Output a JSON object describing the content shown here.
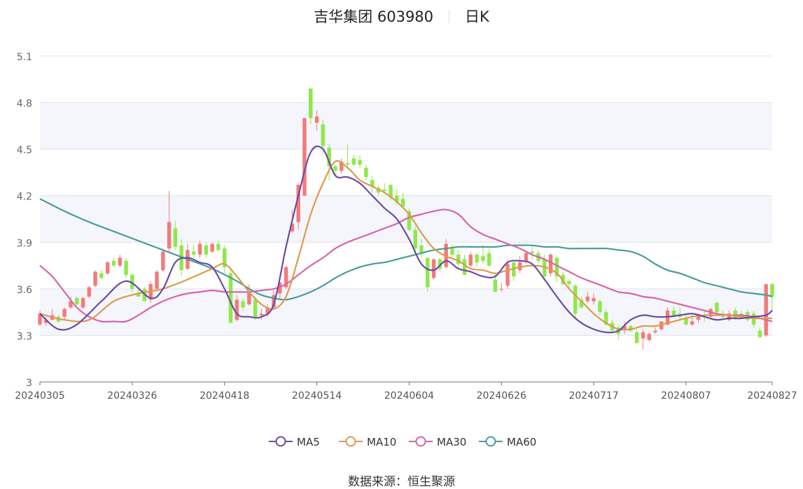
{
  "header": {
    "stock_name_code": "吉华集团 603980",
    "period": "日K"
  },
  "source": {
    "label": "数据来源：",
    "value": "恒生聚源"
  },
  "colors": {
    "up": "#f47a7a",
    "down": "#8fe84b",
    "MA5": "#6a4ca6",
    "MA10": "#de9a4e",
    "MA30": "#d765a7",
    "MA60": "#4a9b9b",
    "grid": "#dde3ea",
    "band": "#f4f6fb"
  },
  "chart_data": {
    "type": "candlestick",
    "title": "吉华集团 603980 日K",
    "ylim": [
      3.0,
      5.1
    ],
    "yticks": [
      "3",
      "3.3",
      "3.6",
      "3.9",
      "4.2",
      "4.5",
      "4.8",
      "5.1"
    ],
    "xticks": [
      {
        "label": "20240305",
        "index": 0
      },
      {
        "label": "20240326",
        "index": 15
      },
      {
        "label": "20240418",
        "index": 30
      },
      {
        "label": "20240514",
        "index": 45
      },
      {
        "label": "20240604",
        "index": 60
      },
      {
        "label": "20240626",
        "index": 75
      },
      {
        "label": "20240717",
        "index": 90
      },
      {
        "label": "20240807",
        "index": 105
      },
      {
        "label": "20240827",
        "index": 119
      }
    ],
    "candles": [
      [
        3.37,
        3.44,
        3.46,
        3.36
      ],
      [
        3.38,
        3.4,
        3.42,
        3.36
      ],
      [
        3.4,
        3.43,
        3.47,
        3.4
      ],
      [
        3.42,
        3.39,
        3.43,
        3.38
      ],
      [
        3.42,
        3.47,
        3.48,
        3.4
      ],
      [
        3.48,
        3.52,
        3.55,
        3.47
      ],
      [
        3.54,
        3.5,
        3.55,
        3.49
      ],
      [
        3.48,
        3.54,
        3.55,
        3.47
      ],
      [
        3.55,
        3.61,
        3.62,
        3.54
      ],
      [
        3.62,
        3.71,
        3.72,
        3.61
      ],
      [
        3.7,
        3.67,
        3.72,
        3.66
      ],
      [
        3.7,
        3.77,
        3.78,
        3.69
      ],
      [
        3.78,
        3.75,
        3.8,
        3.74
      ],
      [
        3.75,
        3.8,
        3.82,
        3.74
      ],
      [
        3.78,
        3.69,
        3.8,
        3.67
      ],
      [
        3.69,
        3.6,
        3.7,
        3.58
      ],
      [
        3.57,
        3.55,
        3.6,
        3.55
      ],
      [
        3.6,
        3.52,
        3.61,
        3.52
      ],
      [
        3.53,
        3.63,
        3.65,
        3.51
      ],
      [
        3.6,
        3.71,
        3.72,
        3.59
      ],
      [
        3.72,
        3.84,
        3.86,
        3.71
      ],
      [
        3.86,
        4.03,
        4.23,
        3.84
      ],
      [
        3.99,
        3.87,
        4.04,
        3.85
      ],
      [
        3.88,
        3.72,
        3.92,
        3.68
      ],
      [
        3.73,
        3.85,
        3.89,
        3.72
      ],
      [
        3.84,
        3.82,
        3.89,
        3.8
      ],
      [
        3.82,
        3.89,
        3.91,
        3.8
      ],
      [
        3.88,
        3.82,
        3.9,
        3.8
      ],
      [
        3.84,
        3.89,
        3.9,
        3.83
      ],
      [
        3.89,
        3.85,
        3.91,
        3.84
      ],
      [
        3.86,
        3.74,
        3.88,
        3.7
      ],
      [
        3.7,
        3.38,
        3.72,
        3.38
      ],
      [
        3.4,
        3.53,
        3.56,
        3.39
      ],
      [
        3.52,
        3.48,
        3.54,
        3.46
      ],
      [
        3.5,
        3.58,
        3.63,
        3.49
      ],
      [
        3.53,
        3.42,
        3.55,
        3.4
      ],
      [
        3.43,
        3.44,
        3.47,
        3.4
      ],
      [
        3.44,
        3.48,
        3.5,
        3.42
      ],
      [
        3.48,
        3.56,
        3.59,
        3.47
      ],
      [
        3.57,
        3.64,
        3.65,
        3.53
      ],
      [
        3.61,
        3.74,
        3.75,
        3.6
      ],
      [
        3.97,
        4.02,
        4.11,
        3.96
      ],
      [
        4.03,
        4.27,
        4.28,
        3.98
      ],
      [
        4.2,
        4.7,
        4.7,
        4.2
      ],
      [
        4.89,
        4.7,
        4.89,
        4.66
      ],
      [
        4.67,
        4.71,
        4.75,
        4.62
      ],
      [
        4.66,
        4.52,
        4.69,
        4.47
      ],
      [
        4.51,
        4.39,
        4.53,
        4.3
      ],
      [
        4.39,
        4.36,
        4.4,
        4.33
      ],
      [
        4.36,
        4.42,
        4.44,
        4.34
      ],
      [
        4.41,
        4.4,
        4.53,
        4.38
      ],
      [
        4.44,
        4.4,
        4.46,
        4.39
      ],
      [
        4.43,
        4.4,
        4.46,
        4.38
      ],
      [
        4.38,
        4.32,
        4.4,
        4.3
      ],
      [
        4.3,
        4.26,
        4.33,
        4.22
      ],
      [
        4.25,
        4.22,
        4.27,
        4.2
      ],
      [
        4.24,
        4.23,
        4.28,
        4.21
      ],
      [
        4.27,
        4.19,
        4.27,
        4.17
      ],
      [
        4.2,
        4.16,
        4.24,
        4.14
      ],
      [
        4.18,
        4.13,
        4.22,
        4.12
      ],
      [
        4.1,
        3.98,
        4.12,
        3.97
      ],
      [
        3.98,
        3.86,
        4.0,
        3.84
      ],
      [
        3.88,
        3.83,
        3.92,
        3.8
      ],
      [
        3.8,
        3.61,
        3.8,
        3.58
      ],
      [
        3.67,
        3.79,
        3.8,
        3.66
      ],
      [
        3.79,
        3.73,
        3.8,
        3.71
      ],
      [
        3.74,
        3.89,
        3.92,
        3.73
      ],
      [
        3.86,
        3.82,
        3.89,
        3.8
      ],
      [
        3.82,
        3.76,
        3.85,
        3.72
      ],
      [
        3.79,
        3.69,
        3.82,
        3.69
      ],
      [
        3.75,
        3.82,
        3.84,
        3.74
      ],
      [
        3.82,
        3.77,
        3.83,
        3.74
      ],
      [
        3.81,
        3.78,
        3.88,
        3.76
      ],
      [
        3.83,
        3.75,
        3.86,
        3.74
      ],
      [
        3.66,
        3.58,
        3.7,
        3.58
      ],
      [
        3.6,
        3.6,
        3.64,
        3.58
      ],
      [
        3.62,
        3.76,
        3.79,
        3.6
      ],
      [
        3.77,
        3.68,
        3.78,
        3.65
      ],
      [
        3.72,
        3.77,
        3.81,
        3.7
      ],
      [
        3.78,
        3.83,
        3.84,
        3.76
      ],
      [
        3.84,
        3.83,
        3.88,
        3.79
      ],
      [
        3.83,
        3.78,
        3.85,
        3.76
      ],
      [
        3.79,
        3.68,
        3.82,
        3.66
      ],
      [
        3.7,
        3.82,
        3.83,
        3.68
      ],
      [
        3.8,
        3.68,
        3.81,
        3.64
      ],
      [
        3.69,
        3.63,
        3.71,
        3.62
      ],
      [
        3.65,
        3.63,
        3.66,
        3.6
      ],
      [
        3.62,
        3.44,
        3.63,
        3.4
      ],
      [
        3.53,
        3.48,
        3.55,
        3.47
      ],
      [
        3.52,
        3.55,
        3.58,
        3.51
      ],
      [
        3.52,
        3.54,
        3.57,
        3.5
      ],
      [
        3.52,
        3.45,
        3.53,
        3.43
      ],
      [
        3.45,
        3.37,
        3.47,
        3.36
      ],
      [
        3.38,
        3.33,
        3.4,
        3.33
      ],
      [
        3.35,
        3.31,
        3.37,
        3.27
      ],
      [
        3.34,
        3.36,
        3.39,
        3.31
      ],
      [
        3.36,
        3.33,
        3.37,
        3.32
      ],
      [
        3.32,
        3.25,
        3.34,
        3.25
      ],
      [
        3.28,
        3.32,
        3.34,
        3.21
      ],
      [
        3.27,
        3.31,
        3.32,
        3.26
      ],
      [
        3.32,
        3.33,
        3.35,
        3.31
      ],
      [
        3.34,
        3.39,
        3.39,
        3.33
      ],
      [
        3.37,
        3.46,
        3.48,
        3.36
      ],
      [
        3.46,
        3.42,
        3.49,
        3.41
      ],
      [
        3.44,
        3.42,
        3.48,
        3.4
      ],
      [
        3.41,
        3.37,
        3.43,
        3.36
      ],
      [
        3.37,
        3.39,
        3.43,
        3.36
      ],
      [
        3.4,
        3.43,
        3.44,
        3.38
      ],
      [
        3.43,
        3.42,
        3.46,
        3.39
      ],
      [
        3.42,
        3.47,
        3.48,
        3.41
      ],
      [
        3.51,
        3.45,
        3.52,
        3.44
      ],
      [
        3.44,
        3.42,
        3.46,
        3.4
      ],
      [
        3.4,
        3.44,
        3.46,
        3.39
      ],
      [
        3.46,
        3.41,
        3.48,
        3.4
      ],
      [
        3.44,
        3.43,
        3.46,
        3.42
      ],
      [
        3.45,
        3.4,
        3.47,
        3.39
      ],
      [
        3.44,
        3.37,
        3.46,
        3.35
      ],
      [
        3.33,
        3.29,
        3.35,
        3.28
      ],
      [
        3.3,
        3.63,
        3.63,
        3.29
      ],
      [
        3.63,
        3.55,
        3.64,
        3.45
      ]
    ],
    "candle_fields": [
      "open",
      "close",
      "high",
      "low"
    ],
    "series": [
      {
        "name": "MA5",
        "x": [
          0,
          3,
          6,
          10,
          14,
          18,
          20,
          22,
          24,
          26,
          28,
          30,
          32,
          34,
          36,
          38,
          40,
          42,
          44,
          46,
          48,
          50,
          52,
          54,
          56,
          58,
          60,
          62,
          64,
          66,
          68,
          70,
          72,
          74,
          76,
          78,
          80,
          82,
          84,
          86,
          88,
          90,
          92,
          94,
          96,
          98,
          100,
          102,
          104,
          106,
          108,
          110,
          112,
          114,
          116,
          118,
          120
        ],
        "y": [
          3.44,
          3.34,
          3.37,
          3.52,
          3.65,
          3.54,
          3.6,
          3.77,
          3.8,
          3.77,
          3.74,
          3.6,
          3.44,
          3.42,
          3.42,
          3.5,
          3.87,
          4.2,
          4.48,
          4.5,
          4.33,
          4.32,
          4.28,
          4.2,
          4.12,
          4.05,
          3.92,
          3.76,
          3.72,
          3.78,
          3.73,
          3.71,
          3.68,
          3.68,
          3.77,
          3.78,
          3.76,
          3.66,
          3.55,
          3.45,
          3.38,
          3.34,
          3.32,
          3.33,
          3.4,
          3.43,
          3.42,
          3.42,
          3.43,
          3.44,
          3.42,
          3.4,
          3.41,
          3.41,
          3.42,
          3.43,
          3.46
        ]
      },
      {
        "name": "MA10",
        "x": [
          0,
          4,
          8,
          12,
          16,
          20,
          24,
          28,
          30,
          32,
          34,
          36,
          38,
          40,
          42,
          44,
          46,
          48,
          50,
          52,
          54,
          56,
          58,
          60,
          62,
          64,
          66,
          68,
          70,
          72,
          74,
          76,
          78,
          80,
          82,
          84,
          86,
          88,
          90,
          92,
          94,
          96,
          98,
          100,
          102,
          104,
          106,
          108,
          110,
          112,
          114,
          116,
          118,
          120
        ],
        "y": [
          3.44,
          3.4,
          3.4,
          3.52,
          3.57,
          3.6,
          3.66,
          3.73,
          3.76,
          3.68,
          3.58,
          3.5,
          3.47,
          3.55,
          3.8,
          4.08,
          4.28,
          4.42,
          4.38,
          4.3,
          4.26,
          4.22,
          4.16,
          4.08,
          3.96,
          3.86,
          3.81,
          3.78,
          3.73,
          3.72,
          3.7,
          3.72,
          3.74,
          3.75,
          3.74,
          3.7,
          3.6,
          3.52,
          3.44,
          3.38,
          3.34,
          3.34,
          3.36,
          3.36,
          3.38,
          3.4,
          3.42,
          3.43,
          3.43,
          3.43,
          3.42,
          3.41,
          3.41,
          3.41
        ]
      },
      {
        "name": "MA30",
        "x": [
          0,
          2,
          4,
          6,
          8,
          10,
          12,
          14,
          16,
          18,
          20,
          22,
          24,
          26,
          28,
          30,
          32,
          34,
          36,
          38,
          40,
          42,
          44,
          46,
          48,
          50,
          52,
          54,
          56,
          58,
          60,
          62,
          64,
          66,
          68,
          70,
          72,
          74,
          76,
          78,
          80,
          82,
          84,
          86,
          88,
          90,
          92,
          94,
          96,
          98,
          100,
          102,
          104,
          106,
          108,
          110,
          112,
          114,
          116,
          118,
          120
        ],
        "y": [
          3.75,
          3.68,
          3.58,
          3.48,
          3.42,
          3.39,
          3.39,
          3.39,
          3.43,
          3.48,
          3.52,
          3.55,
          3.57,
          3.58,
          3.59,
          3.58,
          3.58,
          3.58,
          3.59,
          3.6,
          3.63,
          3.69,
          3.75,
          3.8,
          3.86,
          3.9,
          3.93,
          3.96,
          3.99,
          4.02,
          4.06,
          4.08,
          4.1,
          4.11,
          4.08,
          4.0,
          3.95,
          3.92,
          3.89,
          3.86,
          3.82,
          3.79,
          3.75,
          3.71,
          3.67,
          3.64,
          3.61,
          3.58,
          3.57,
          3.55,
          3.54,
          3.52,
          3.5,
          3.48,
          3.46,
          3.44,
          3.43,
          3.43,
          3.42,
          3.4,
          3.39
        ]
      },
      {
        "name": "MA60",
        "x": [
          0,
          4,
          8,
          12,
          16,
          20,
          24,
          28,
          32,
          34,
          36,
          38,
          40,
          42,
          44,
          46,
          48,
          50,
          52,
          54,
          56,
          58,
          60,
          62,
          64,
          66,
          68,
          70,
          72,
          74,
          76,
          78,
          80,
          82,
          84,
          86,
          88,
          90,
          92,
          94,
          96,
          98,
          100,
          102,
          104,
          106,
          108,
          110,
          112,
          114,
          116,
          118,
          120
        ],
        "y": [
          4.18,
          4.1,
          4.03,
          3.97,
          3.91,
          3.85,
          3.79,
          3.73,
          3.65,
          3.6,
          3.56,
          3.54,
          3.53,
          3.55,
          3.58,
          3.62,
          3.67,
          3.71,
          3.74,
          3.76,
          3.77,
          3.79,
          3.81,
          3.83,
          3.85,
          3.86,
          3.87,
          3.87,
          3.87,
          3.87,
          3.88,
          3.88,
          3.88,
          3.87,
          3.87,
          3.86,
          3.86,
          3.86,
          3.86,
          3.85,
          3.84,
          3.81,
          3.76,
          3.72,
          3.7,
          3.67,
          3.64,
          3.62,
          3.6,
          3.58,
          3.57,
          3.56,
          3.55
        ]
      }
    ],
    "legend": [
      "MA5",
      "MA10",
      "MA30",
      "MA60"
    ],
    "legend_position": "bottom",
    "grid": true
  }
}
